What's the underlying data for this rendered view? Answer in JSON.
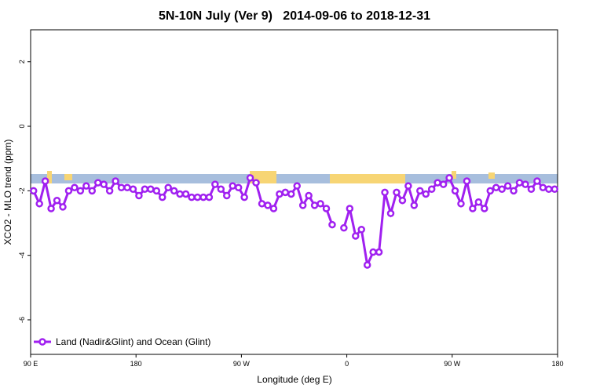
{
  "chart_data": {
    "type": "line",
    "title": "5N-10N July (Ver 9)   2014-09-06 to 2018-12-31",
    "x_label": "Longitude (deg E)",
    "y_label": "XCO2 - MLO trend (ppm)",
    "xlim": [
      90,
      540
    ],
    "ylim": [
      -7.07,
      2.99
    ],
    "xticks": [
      {
        "value": 90,
        "label": "90 E"
      },
      180,
      {
        "value": 270,
        "label": "90 W"
      },
      {
        "value": 360,
        "label": "0"
      },
      {
        "value": 450,
        "label": "90 W"
      },
      {
        "value": 540,
        "label": "180"
      }
    ],
    "yticks": [
      2,
      0,
      -2,
      -4,
      -6
    ],
    "legend": "bottom-left",
    "x": [
      92.5,
      97.5,
      102.5,
      107.5,
      112.5,
      117.5,
      122.5,
      127.5,
      132.5,
      137.5,
      142.5,
      147.5,
      152.5,
      157.5,
      162.5,
      167.5,
      172.5,
      177.5,
      182.5,
      187.5,
      192.5,
      197.5,
      202.5,
      207.5,
      212.5,
      217.5,
      222.5,
      227.5,
      232.5,
      237.5,
      242.5,
      247.5,
      252.5,
      257.5,
      262.5,
      267.5,
      272.5,
      277.5,
      282.5,
      287.5,
      292.5,
      297.5,
      302.5,
      307.5,
      312.5,
      317.5,
      322.5,
      327.5,
      332.5,
      337.5,
      342.5,
      347.5,
      352.5,
      357.5,
      362.5,
      367.5,
      372.5,
      377.5,
      382.5,
      387.5,
      392.5,
      397.5,
      402.5,
      407.5,
      412.5,
      417.5,
      422.5,
      427.5,
      432.5,
      437.5,
      442.5,
      447.5,
      452.5,
      457.5,
      462.5,
      467.5,
      472.5,
      477.5,
      482.5,
      487.5,
      492.5,
      497.5,
      502.5,
      507.5,
      512.5,
      517.5,
      522.5,
      527.5,
      532.5,
      537.5
    ],
    "series": [
      {
        "name": "Land (Nadir&Glint) and Ocean (Glint)",
        "color": "#a020f0",
        "values": [
          -2.0,
          -2.4,
          -1.7,
          -2.55,
          -2.3,
          -2.5,
          -2.0,
          -1.9,
          -2.0,
          -1.85,
          -2.0,
          -1.75,
          -1.8,
          -2.0,
          -1.7,
          -1.9,
          -1.9,
          -1.95,
          -2.15,
          -1.95,
          -1.95,
          -2.0,
          -2.2,
          -1.9,
          -2.0,
          -2.1,
          -2.1,
          -2.2,
          -2.2,
          -2.2,
          -2.2,
          -1.8,
          -1.95,
          -2.15,
          -1.85,
          -1.9,
          -2.2,
          -1.6,
          -1.75,
          -2.4,
          -2.45,
          -2.55,
          -2.1,
          -2.05,
          -2.1,
          -1.85,
          -2.45,
          -2.15,
          -2.45,
          -2.4,
          -2.55,
          -3.05,
          null,
          -3.15,
          -2.55,
          -3.4,
          -3.2,
          -4.3,
          -3.9,
          -3.9,
          -2.05,
          -2.7,
          -2.05,
          -2.3,
          -1.85,
          -2.45,
          -2.0,
          -2.1,
          -1.95,
          -1.75,
          -1.8,
          -1.6,
          -2.0,
          -2.4,
          -1.7,
          -2.55,
          -2.35,
          -2.55,
          -2.0,
          -1.9,
          -1.95,
          -1.85,
          -2.0,
          -1.75,
          -1.8,
          -1.95,
          -1.7,
          -1.9,
          -1.95,
          -1.95
        ]
      }
    ]
  }
}
